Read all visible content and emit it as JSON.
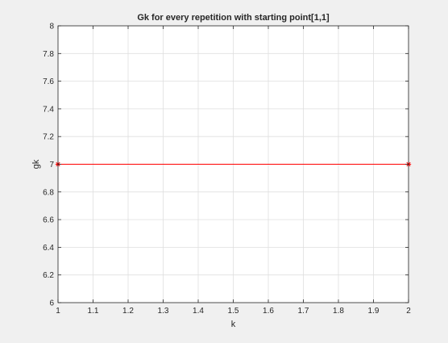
{
  "chart_data": {
    "type": "line",
    "title": "Gk for every repetition with starting point[1,1]",
    "xlabel": "k",
    "ylabel": "gk",
    "xlim": [
      1,
      2
    ],
    "ylim": [
      6,
      8
    ],
    "xticks": [
      "1",
      "1.1",
      "1.2",
      "1.3",
      "1.4",
      "1.5",
      "1.6",
      "1.7",
      "1.8",
      "1.9",
      "2"
    ],
    "yticks": [
      "6",
      "6.2",
      "6.4",
      "6.6",
      "6.8",
      "7",
      "7.2",
      "7.4",
      "7.6",
      "7.8",
      "8"
    ],
    "grid": true,
    "series": [
      {
        "x": [
          1,
          2
        ],
        "y": [
          7,
          7
        ],
        "color": "#ff0000",
        "marker": "asterisk"
      }
    ]
  }
}
